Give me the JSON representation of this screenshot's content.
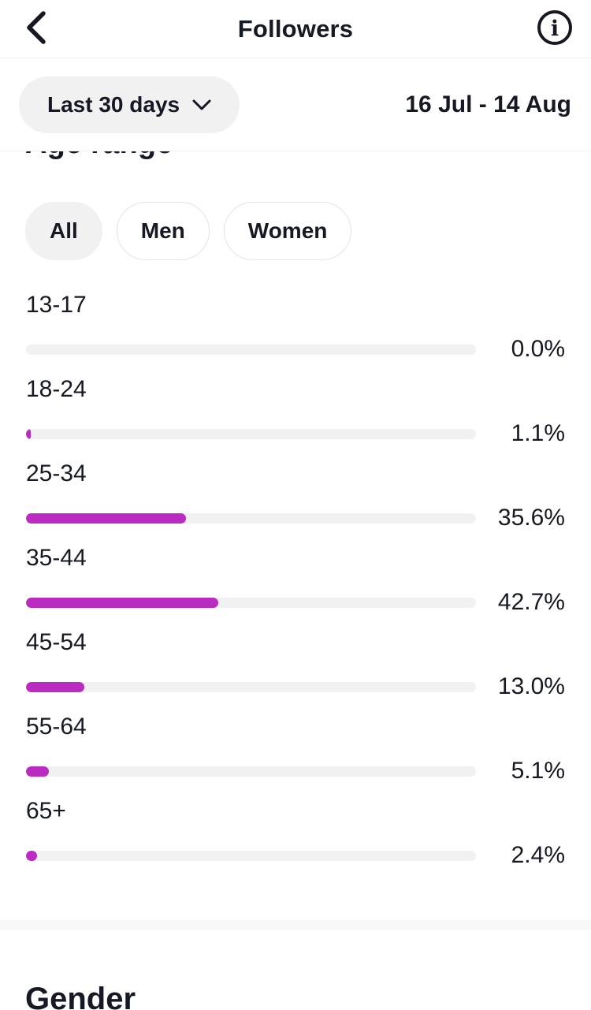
{
  "header": {
    "title": "Followers",
    "back_icon": "chevron-left",
    "info_icon": "info-circle"
  },
  "filter": {
    "range_label": "Last 30 days",
    "range_chevron": "chevron-down",
    "date_range": "16 Jul - 14 Aug"
  },
  "age_section": {
    "title": "Age range",
    "tabs": [
      {
        "label": "All",
        "selected": true
      },
      {
        "label": "Men",
        "selected": false
      },
      {
        "label": "Women",
        "selected": false
      }
    ]
  },
  "chart_data": {
    "type": "bar",
    "orientation": "horizontal",
    "title": "Age range",
    "categories": [
      "13-17",
      "18-24",
      "25-34",
      "35-44",
      "45-54",
      "55-64",
      "65+"
    ],
    "values": [
      0.0,
      1.1,
      35.6,
      42.7,
      13.0,
      5.1,
      2.4
    ],
    "value_labels": [
      "0.0%",
      "1.1%",
      "35.6%",
      "42.7%",
      "13.0%",
      "5.1%",
      "2.4%"
    ],
    "unit": "%",
    "xlim": [
      0,
      100
    ],
    "bar_color": "#bb2bc2",
    "track_color": "#f1f1f2",
    "grid": false,
    "legend": false
  },
  "gender_section": {
    "title": "Gender"
  },
  "colors": {
    "accent": "#bb2bc2",
    "text": "#161823",
    "pill_bg": "#f1f1f2",
    "divider": "#f8f8f8"
  }
}
